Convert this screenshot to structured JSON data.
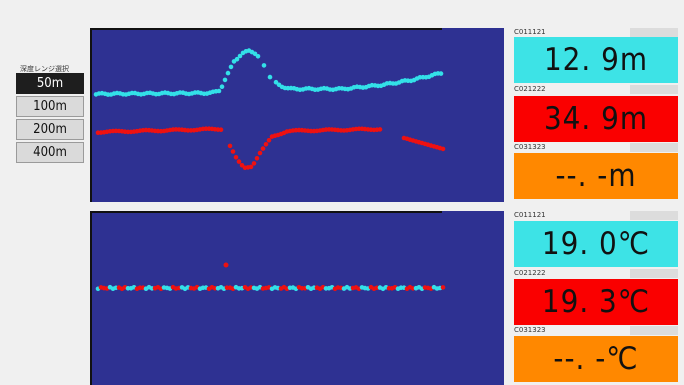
{
  "range_selector": {
    "title": "深度レンジ選択",
    "options": [
      "50m",
      "100m",
      "200m",
      "400m"
    ],
    "selected_index": 0
  },
  "depth_panels": [
    {
      "id": "C011121",
      "value": "12. 9m",
      "color": "#3de3e6"
    },
    {
      "id": "C021222",
      "value": "34. 9m",
      "color": "#fa0000"
    },
    {
      "id": "C031323",
      "value": "--. -m",
      "color": "#ff8800"
    }
  ],
  "temp_panels": [
    {
      "id": "C011121",
      "value": "19. 0℃",
      "color": "#3de3e6"
    },
    {
      "id": "C021222",
      "value": "19. 3℃",
      "color": "#fa0000"
    },
    {
      "id": "C031323",
      "value": "--. -℃",
      "color": "#ff8800"
    }
  ],
  "colors": {
    "plot_background": "#2e3192",
    "series_cyan": "#33e0e8",
    "series_red": "#ee1111"
  }
}
